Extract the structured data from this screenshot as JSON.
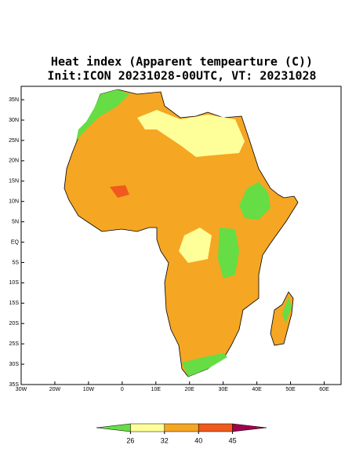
{
  "map": {
    "title": "Heat index (Apparent tempearture (C))",
    "subtitle": "Init:ICON 20231028-00UTC, VT: 20231028",
    "xlim": [
      -30,
      65
    ],
    "ylim": [
      -35,
      38.3
    ],
    "xticks": [
      {
        "value": -30,
        "label": "30W"
      },
      {
        "value": -20,
        "label": "20W"
      },
      {
        "value": -10,
        "label": "10W"
      },
      0,
      {
        "value": 10,
        "label": "10E"
      },
      {
        "value": 20,
        "label": "20E"
      },
      {
        "value": 30,
        "label": "30E"
      },
      {
        "value": 40,
        "label": "40E"
      },
      {
        "value": 50,
        "label": "50E"
      },
      {
        "value": 60,
        "label": "60E"
      }
    ],
    "yticks": [
      {
        "value": 35,
        "label": "35N"
      },
      {
        "value": 30,
        "label": "30N"
      },
      {
        "value": 25,
        "label": "25N"
      },
      {
        "value": 20,
        "label": "20N"
      },
      {
        "value": 15,
        "label": "15N"
      },
      {
        "value": 10,
        "label": "10N"
      },
      {
        "value": 5,
        "label": "5N"
      },
      {
        "value": 0,
        "label": "EQ"
      },
      {
        "value": -5,
        "label": "5S"
      },
      {
        "value": -10,
        "label": "10S"
      },
      {
        "value": -15,
        "label": "15S"
      },
      {
        "value": -20,
        "label": "20S"
      },
      {
        "value": -25,
        "label": "25S"
      },
      {
        "value": -30,
        "label": "30S"
      },
      {
        "value": -35,
        "label": "35S"
      }
    ],
    "colorbar": {
      "ticks": [
        26,
        32,
        40,
        45
      ],
      "colors": [
        "#66dd44",
        "#ffff99",
        "#f5a623",
        "#f05a1e",
        "#a0004e"
      ]
    }
  }
}
